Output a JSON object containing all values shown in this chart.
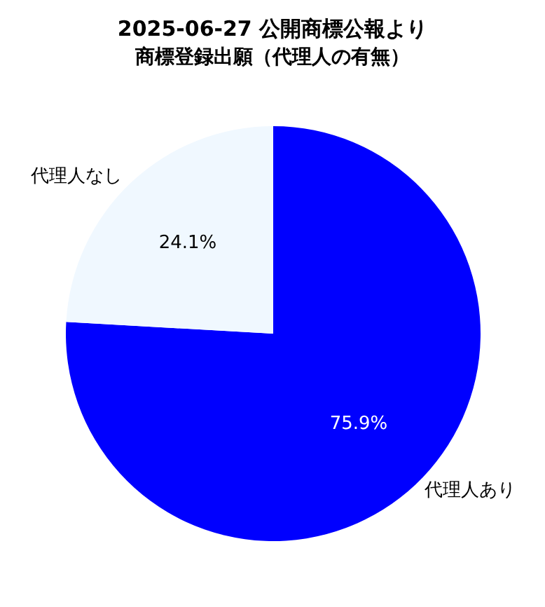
{
  "chart_data": {
    "type": "pie",
    "title": "2025-06-27 公開商標公報より",
    "subtitle": "商標登録出願（代理人の有無）",
    "categories": [
      "代理人あり",
      "代理人なし"
    ],
    "values": [
      75.9,
      24.1
    ],
    "colors": [
      "#0000ff",
      "#f0f8ff"
    ],
    "value_labels": [
      "75.9%",
      "24.1%"
    ],
    "legend": false
  }
}
